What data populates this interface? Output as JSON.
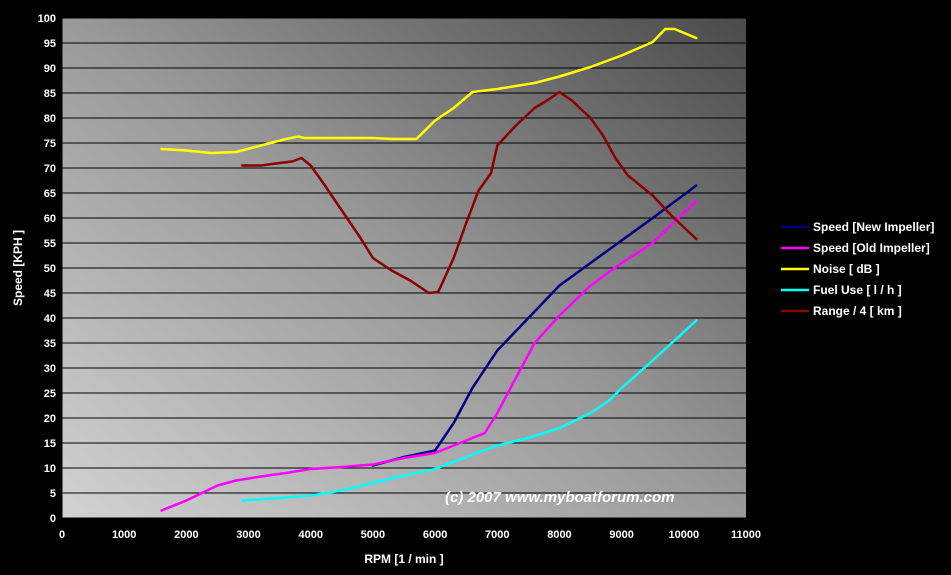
{
  "chart_data": {
    "type": "line",
    "xlabel": "RPM [1 / min ]",
    "ylabel": "Speed  [KPH ]",
    "xlim": [
      0,
      11000
    ],
    "ylim": [
      0,
      100
    ],
    "x_ticks": [
      0,
      1000,
      2000,
      3000,
      4000,
      5000,
      6000,
      7000,
      8000,
      9000,
      10000,
      11000
    ],
    "y_ticks": [
      0,
      5,
      10,
      15,
      20,
      25,
      30,
      35,
      40,
      45,
      50,
      55,
      60,
      65,
      70,
      75,
      80,
      85,
      90,
      95,
      100
    ],
    "grid": "horizontal",
    "legend_position": "right",
    "watermark": "(c) 2007 www.myboatforum.com",
    "series": [
      {
        "name": "Speed [New Impeller]",
        "color": "#000080",
        "points": [
          [
            5000,
            10.5
          ],
          [
            5500,
            12.2
          ],
          [
            6000,
            13.5
          ],
          [
            6300,
            19
          ],
          [
            6600,
            26
          ],
          [
            7000,
            33.5
          ],
          [
            7500,
            40
          ],
          [
            8000,
            46.5
          ],
          [
            8500,
            51
          ],
          [
            9000,
            55.5
          ],
          [
            9500,
            60
          ],
          [
            10200,
            66.5
          ]
        ]
      },
      {
        "name": "Speed [Old Impeller]",
        "color": "#ff00ff",
        "points": [
          [
            1600,
            1.5
          ],
          [
            2000,
            3.5
          ],
          [
            2500,
            6.5
          ],
          [
            2800,
            7.5
          ],
          [
            3200,
            8.3
          ],
          [
            3600,
            9
          ],
          [
            4000,
            9.8
          ],
          [
            4500,
            10.2
          ],
          [
            5000,
            10.7
          ],
          [
            5500,
            12
          ],
          [
            6000,
            13
          ],
          [
            6500,
            15.5
          ],
          [
            6800,
            17
          ],
          [
            7000,
            21
          ],
          [
            7300,
            28
          ],
          [
            7600,
            35
          ],
          [
            8000,
            40.5
          ],
          [
            8500,
            46.5
          ],
          [
            9000,
            51
          ],
          [
            9500,
            55
          ],
          [
            10200,
            63.5
          ]
        ]
      },
      {
        "name": "Noise [ dB ]",
        "color": "#ffff00",
        "points": [
          [
            1600,
            73.8
          ],
          [
            2000,
            73.5
          ],
          [
            2400,
            73
          ],
          [
            2800,
            73.2
          ],
          [
            3200,
            74.5
          ],
          [
            3600,
            75.8
          ],
          [
            3800,
            76.3
          ],
          [
            3900,
            76
          ],
          [
            4500,
            76
          ],
          [
            5000,
            76
          ],
          [
            5300,
            75.8
          ],
          [
            5700,
            75.8
          ],
          [
            6000,
            79.5
          ],
          [
            6300,
            82
          ],
          [
            6600,
            85.2
          ],
          [
            7000,
            85.8
          ],
          [
            7600,
            87
          ],
          [
            8000,
            88.3
          ],
          [
            8500,
            90.2
          ],
          [
            9000,
            92.5
          ],
          [
            9500,
            95.2
          ],
          [
            9700,
            97.8
          ],
          [
            9850,
            97.8
          ],
          [
            10200,
            96
          ]
        ]
      },
      {
        "name": "Fuel Use [ l / h ]",
        "color": "#00ffff",
        "points": [
          [
            2900,
            3.5
          ],
          [
            3500,
            4
          ],
          [
            4000,
            4.5
          ],
          [
            4500,
            5.5
          ],
          [
            5000,
            7
          ],
          [
            5500,
            8.5
          ],
          [
            6000,
            9.8
          ],
          [
            6500,
            12.2
          ],
          [
            7000,
            14.5
          ],
          [
            7500,
            16
          ],
          [
            8000,
            18
          ],
          [
            8500,
            21
          ],
          [
            8800,
            23.5
          ],
          [
            9000,
            26
          ],
          [
            9500,
            31.5
          ],
          [
            10200,
            39.5
          ]
        ]
      },
      {
        "name": "Range / 4 [ km ]",
        "color": "#8b0000",
        "points": [
          [
            2900,
            70.5
          ],
          [
            3200,
            70.5
          ],
          [
            3500,
            71
          ],
          [
            3700,
            71.3
          ],
          [
            3850,
            72
          ],
          [
            4000,
            70.5
          ],
          [
            4200,
            67
          ],
          [
            4500,
            61.5
          ],
          [
            4800,
            56
          ],
          [
            5000,
            52
          ],
          [
            5300,
            49.5
          ],
          [
            5600,
            47.5
          ],
          [
            5900,
            45
          ],
          [
            6050,
            45.2
          ],
          [
            6300,
            52
          ],
          [
            6500,
            59
          ],
          [
            6700,
            65.5
          ],
          [
            6900,
            69
          ],
          [
            7000,
            74.5
          ],
          [
            7300,
            78.5
          ],
          [
            7600,
            82
          ],
          [
            7800,
            83.5
          ],
          [
            8000,
            85.2
          ],
          [
            8200,
            83.5
          ],
          [
            8500,
            80
          ],
          [
            8700,
            76.5
          ],
          [
            8900,
            72
          ],
          [
            9100,
            68.5
          ],
          [
            9500,
            64.5
          ],
          [
            9800,
            60.5
          ],
          [
            10200,
            55.8
          ]
        ]
      }
    ]
  }
}
